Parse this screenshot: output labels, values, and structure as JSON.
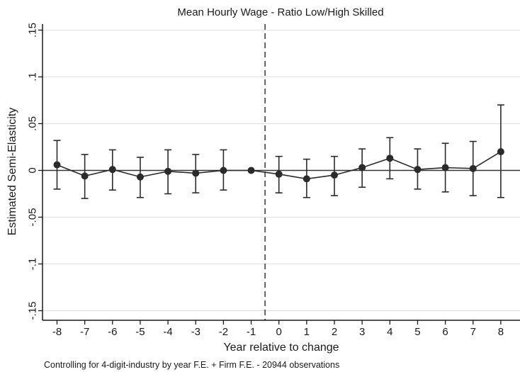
{
  "chart_data": {
    "type": "scatter",
    "title": "Mean Hourly Wage - Ratio Low/High Skilled",
    "xlabel": "Year relative to change",
    "ylabel": "Estimated Semi-Elasticity",
    "note": "Controlling for 4-digit-industry by year F.E. + Firm  F.E. - 20944 observations",
    "x": [
      -8,
      -7,
      -6,
      -5,
      -4,
      -3,
      -2,
      -1,
      0,
      1,
      2,
      3,
      4,
      5,
      6,
      7,
      8
    ],
    "x_tick_labels": [
      "-8",
      "-7",
      "-6",
      "-5",
      "-4",
      "-3",
      "-2",
      "-1",
      "0",
      "1",
      "2",
      "3",
      "4",
      "5",
      "6",
      "7",
      "8"
    ],
    "series": [
      {
        "estimate": [
          0.006,
          -0.006,
          0.001,
          -0.007,
          -0.001,
          -0.003,
          0.0,
          0.0,
          -0.004,
          -0.009,
          -0.005,
          0.003,
          0.013,
          0.001,
          0.003,
          0.002,
          0.02
        ],
        "ci_low": [
          -0.02,
          -0.03,
          -0.021,
          -0.029,
          -0.025,
          -0.024,
          -0.021,
          0.0,
          -0.024,
          -0.029,
          -0.027,
          -0.018,
          -0.009,
          -0.02,
          -0.023,
          -0.027,
          -0.029
        ],
        "ci_high": [
          0.032,
          0.017,
          0.022,
          0.014,
          0.022,
          0.017,
          0.022,
          0.0,
          0.015,
          0.012,
          0.015,
          0.023,
          0.035,
          0.023,
          0.029,
          0.031,
          0.07
        ]
      }
    ],
    "yticks": [
      0.15,
      0.1,
      0.05,
      0,
      -0.05,
      -0.1,
      -0.15
    ],
    "y_tick_labels": [
      ".15",
      ".1",
      ".05",
      "0",
      "-.05",
      "-.1",
      "-.15"
    ],
    "ylim": [
      -0.155,
      0.16
    ],
    "xlim": [
      -8.5,
      8.5
    ],
    "reference_vline_x": -0.5,
    "reference_hline_y": 0,
    "grid": "horizontal",
    "colors": {
      "marker": "#2b2b2b",
      "gridline": "#e2e2e2",
      "axis": "#1a1a1a",
      "refline": "#555555"
    }
  }
}
